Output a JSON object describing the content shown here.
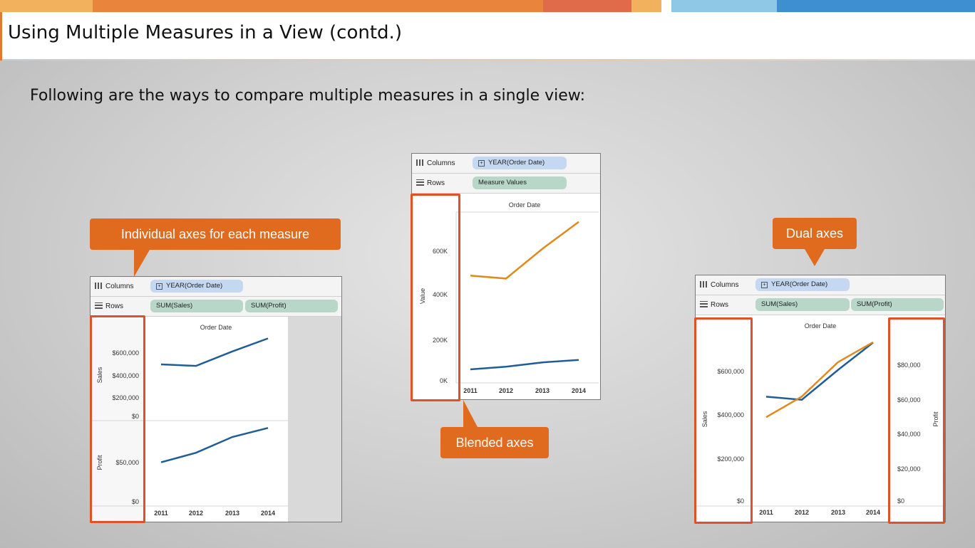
{
  "slide": {
    "title": "Using Multiple Measures in a View (contd.)",
    "intro": "Following are the ways to compare multiple measures in a single view:",
    "topbar_colors": [
      "#f2b15c",
      "#e8843c",
      "#e06b4a",
      "#f2b15c",
      "#ffffff",
      "#8fc8e6",
      "#3d8fd1"
    ]
  },
  "callouts": {
    "individual": "Individual axes for each measure",
    "blended": "Blended axes",
    "dual": "Dual axes",
    "color": "#e06b1f"
  },
  "shelves": {
    "columns_label": "Columns",
    "rows_label": "Rows",
    "year_pill": "YEAR(Order Date)",
    "measure_values_pill": "Measure Values",
    "sales_pill": "SUM(Sales)",
    "profit_pill": "SUM(Profit)",
    "header": "Order Date"
  },
  "chart_data": [
    {
      "type": "line",
      "title": "",
      "panes": [
        {
          "ylabel": "Sales",
          "x": [
            "2011",
            "2012",
            "2013",
            "2014"
          ],
          "series": [
            {
              "values": [
                484000,
                470000,
                608000,
                733000
              ],
              "color": "#1f5d99"
            }
          ],
          "yticks": [
            "$600,000",
            "$400,000",
            "$200,000",
            "$0"
          ]
        },
        {
          "ylabel": "Profit",
          "x": [
            "2011",
            "2012",
            "2013",
            "2014"
          ],
          "series": [
            {
              "values": [
                49500,
                61600,
                81800,
                93400
              ],
              "color": "#1f5d99"
            }
          ],
          "yticks": [
            "$50,000",
            "$0"
          ]
        }
      ],
      "xlabel": "Order Date"
    },
    {
      "type": "line",
      "title": "",
      "xlabel": "Order Date",
      "ylabel": "Value",
      "x": [
        "2011",
        "2012",
        "2013",
        "2014"
      ],
      "yticks": [
        "600K",
        "400K",
        "200K",
        "0K"
      ],
      "ylim": [
        0,
        750000
      ],
      "series": [
        {
          "values": [
            484000,
            470000,
            608000,
            733000
          ],
          "color": "#e08a1e"
        },
        {
          "values": [
            49500,
            61600,
            81800,
            93400
          ],
          "color": "#1f5d99"
        }
      ]
    },
    {
      "type": "line",
      "title": "",
      "xlabel": "Order Date",
      "ylabel": "Sales",
      "ylabel_right": "Profit",
      "x": [
        "2011",
        "2012",
        "2013",
        "2014"
      ],
      "yticks_left": [
        "$600,000",
        "$400,000",
        "$200,000",
        "$0"
      ],
      "yticks_right": [
        "$80,000",
        "$60,000",
        "$40,000",
        "$20,000",
        "$0"
      ],
      "series": [
        {
          "axis": "left",
          "values": [
            484000,
            470000,
            608000,
            733000
          ],
          "color": "#1f5d99"
        },
        {
          "axis": "right",
          "values": [
            49500,
            61600,
            81800,
            93400
          ],
          "color": "#e08a1e"
        }
      ]
    }
  ]
}
